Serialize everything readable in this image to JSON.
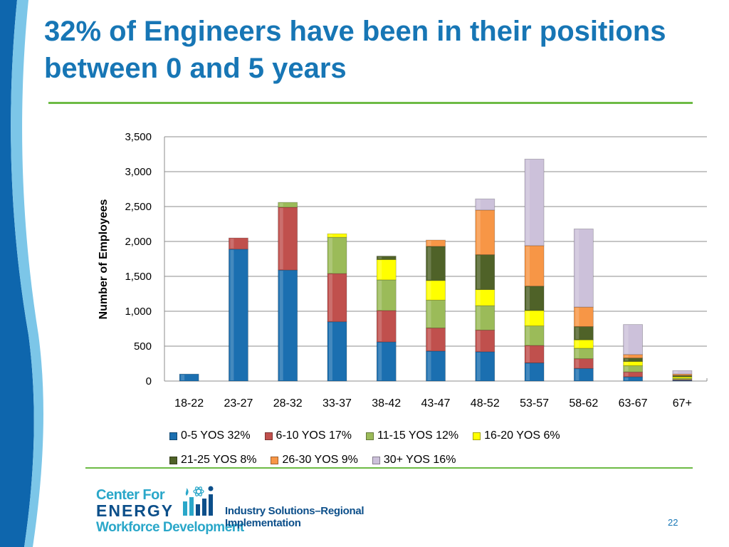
{
  "slide": {
    "title": "32% of Engineers have been in their positions between 0 and 5 years",
    "page_number": "22"
  },
  "logo": {
    "line1": "Center For",
    "line2": "ENERGY",
    "line3": "Workforce Development",
    "tagline": "Industry Solutions–Regional Implementation"
  },
  "colors": {
    "title": "#1776b5",
    "rule": "#6dbb45",
    "swoosh": "#0e66ad"
  },
  "chart_data": {
    "type": "bar",
    "stacked": true,
    "categories": [
      "18-22",
      "23-27",
      "28-32",
      "33-37",
      "38-42",
      "43-47",
      "48-52",
      "53-57",
      "58-62",
      "63-67",
      "67+"
    ],
    "ylabel": "Number of Employees",
    "ylim": [
      0,
      3500
    ],
    "yticks": [
      "0",
      "500",
      "1,000",
      "1,500",
      "2,000",
      "2,500",
      "3,000",
      "3,500"
    ],
    "grid": true,
    "legend_position": "bottom",
    "series": [
      {
        "name": "0-5 YOS 32%",
        "color": "#1b6fb0",
        "values": [
          100,
          1890,
          1590,
          850,
          560,
          430,
          420,
          260,
          180,
          60,
          10
        ]
      },
      {
        "name": "6-10 YOS 17%",
        "color": "#c0504d",
        "values": [
          0,
          160,
          900,
          690,
          450,
          330,
          310,
          250,
          140,
          70,
          10
        ]
      },
      {
        "name": "11-15 YOS 12%",
        "color": "#9bbb59",
        "values": [
          0,
          0,
          70,
          520,
          440,
          400,
          350,
          280,
          150,
          90,
          20
        ]
      },
      {
        "name": "16-20 YOS 6%",
        "color": "#ffff00",
        "values": [
          0,
          0,
          0,
          50,
          290,
          280,
          230,
          220,
          120,
          60,
          20
        ]
      },
      {
        "name": "21-25 YOS 8%",
        "color": "#4f6228",
        "values": [
          0,
          0,
          0,
          0,
          50,
          490,
          500,
          350,
          190,
          50,
          20
        ]
      },
      {
        "name": "26-30 YOS 9%",
        "color": "#f79646",
        "values": [
          0,
          0,
          0,
          0,
          0,
          90,
          640,
          580,
          280,
          50,
          20
        ]
      },
      {
        "name": "30+ YOS 16%",
        "color": "#ccc1da",
        "values": [
          0,
          0,
          0,
          0,
          0,
          0,
          160,
          1240,
          1120,
          430,
          50
        ]
      }
    ]
  }
}
